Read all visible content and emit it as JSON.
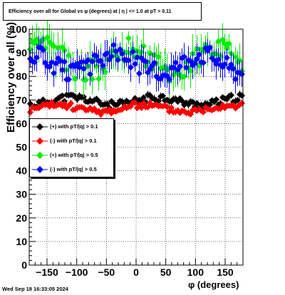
{
  "title": "Efficiency over all for Global vs φ (degrees) at |   η | <= 1.0 at pT > 0.11",
  "footer": "Wed Sep 18 16:33:05 2024",
  "chart_data": {
    "type": "scatter",
    "xlabel": "φ (degrees)",
    "ylabel": "Efficiency over all (%)",
    "xlim": [
      -180,
      180
    ],
    "ylim": [
      0,
      100
    ],
    "x_ticks": [
      "−150",
      "−100",
      "−50",
      "0",
      "50",
      "100",
      "150"
    ],
    "y_ticks": [
      "0",
      "10",
      "20",
      "30",
      "40",
      "50",
      "60",
      "70",
      "80",
      "90",
      "100"
    ],
    "grid": true,
    "legend_position": "center-left",
    "series": [
      {
        "name": "(+) with pT/|q| > 0.1",
        "color": "#000000",
        "marker": "diamond",
        "base": 69.5,
        "amp": 1.6,
        "err": 1.2,
        "seed": 11
      },
      {
        "name": "(-) with pT/|q| > 0.1",
        "color": "#ff0000",
        "marker": "diamond",
        "base": 66.5,
        "amp": 1.4,
        "err": 1.1,
        "seed": 23
      },
      {
        "name": "(+) with pT/|q| > 0.5",
        "color": "#00ee00",
        "marker": "diamond",
        "base": 87.0,
        "amp": 5.0,
        "err": 5.5,
        "seed": 37
      },
      {
        "name": "(-) with pT/|q| > 0.5",
        "color": "#0000ff",
        "marker": "diamond",
        "base": 85.5,
        "amp": 4.0,
        "err": 4.5,
        "seed": 51
      }
    ]
  }
}
